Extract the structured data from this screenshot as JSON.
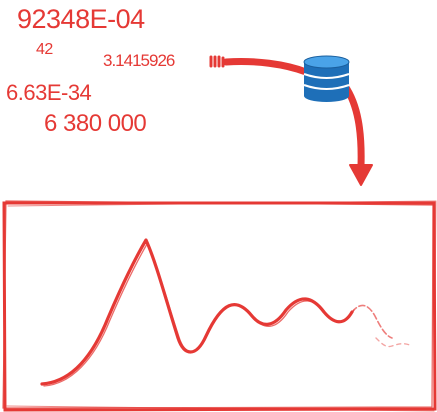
{
  "numbers": {
    "n1": "92348E-04",
    "n2": "42",
    "n3": "3.1415926",
    "n4": "6.63E-34",
    "n5": "6 380 000"
  },
  "colors": {
    "accent": "#e53935",
    "database": "#1e6fb8",
    "database_light": "#4aa3e8"
  },
  "icons": {
    "database": "database-icon"
  }
}
